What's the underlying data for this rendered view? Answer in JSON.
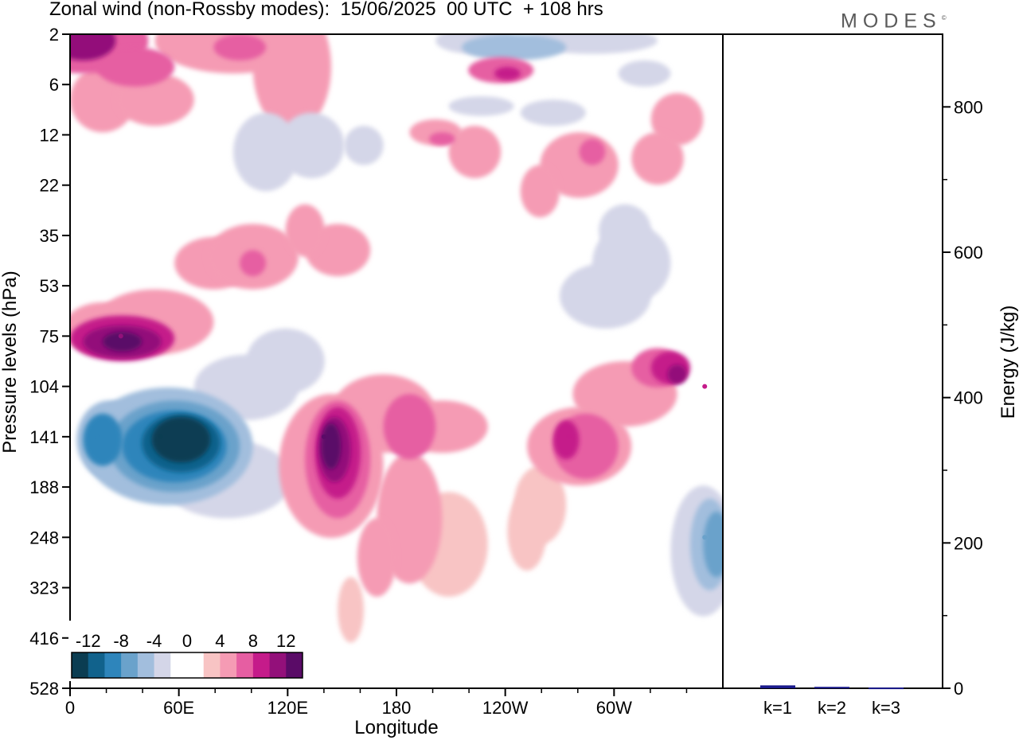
{
  "header": {
    "title": "Zonal wind (non-Rossby modes):  15/06/2025  00 UTC  + 108 hrs",
    "brand": "MODES",
    "brand_mark": "©"
  },
  "colors": {
    "scale": [
      "#0b3d52",
      "#11628c",
      "#2e85bb",
      "#6aa2cb",
      "#a2bedd",
      "#d4d6e8",
      "#ffffff",
      "#ffffff",
      "#f8c4c4",
      "#f59bb4",
      "#e65ea2",
      "#c51b8a",
      "#93107a",
      "#5a0b67"
    ],
    "energy_bar": "#1a1a8c"
  },
  "chart_data": [
    {
      "type": "heatmap",
      "title": "Zonal wind (non-Rossby modes):  15/06/2025  00 UTC  + 108 hrs",
      "xlabel": "Longitude",
      "ylabel": "Pressure levels (hPa)",
      "x_ticks": [
        "0",
        "60E",
        "120E",
        "180",
        "120W",
        "60W"
      ],
      "x_tick_values": [
        0,
        60,
        120,
        180,
        240,
        300
      ],
      "x_range": [
        0,
        360
      ],
      "y_ticks": [
        "2",
        "6",
        "12",
        "22",
        "35",
        "53",
        "75",
        "104",
        "141",
        "188",
        "248",
        "323",
        "416",
        "528"
      ],
      "colorbar": {
        "labels": [
          "-12",
          "-8",
          "-4",
          "0",
          "4",
          "8",
          "12"
        ],
        "levels": [
          -14,
          -12,
          -10,
          -8,
          -6,
          -4,
          -2,
          0,
          2,
          4,
          6,
          8,
          10,
          12,
          14
        ]
      },
      "features": [
        {
          "level": "141",
          "lon": 50,
          "value": -14
        },
        {
          "level": "141",
          "lon": 15,
          "value": -10
        },
        {
          "level": "75",
          "lon": 28,
          "value": 10
        },
        {
          "level": "141",
          "lon": 140,
          "value": 14
        },
        {
          "level": "141",
          "lon": 275,
          "value": 8
        },
        {
          "level": "104",
          "lon": 350,
          "value": 8
        },
        {
          "level": "248",
          "lon": 350,
          "value": -8
        },
        {
          "level": "2",
          "lon": 15,
          "value": 10
        }
      ]
    },
    {
      "type": "bar",
      "ylabel": "Energy (J/kg)",
      "categories": [
        "k=1",
        "k=2",
        "k=3"
      ],
      "values": [
        4,
        2,
        1
      ],
      "ylim": [
        0,
        900
      ],
      "y_ticks": [
        "0",
        "200",
        "400",
        "600",
        "800"
      ],
      "y_tick_values": [
        0,
        200,
        400,
        600,
        800
      ]
    }
  ]
}
